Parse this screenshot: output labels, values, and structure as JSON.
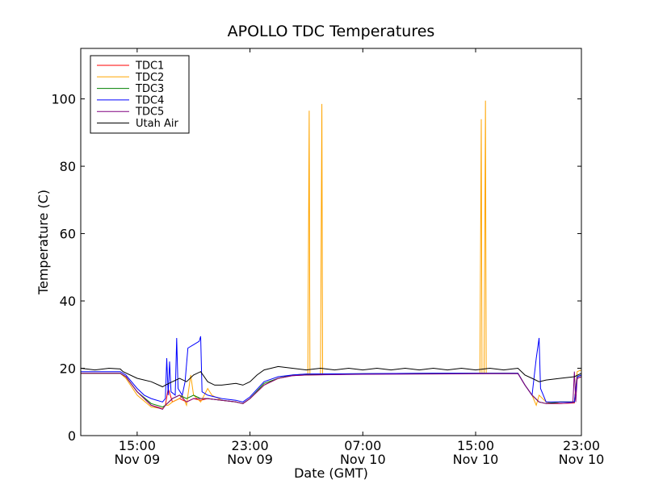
{
  "chart_data": {
    "type": "line",
    "title": "APOLLO TDC Temperatures",
    "xlabel": "Date (GMT)",
    "ylabel": "Temperature (C)",
    "ylim": [
      0,
      115
    ],
    "xlim": [
      0,
      35.5
    ],
    "x_unit": "hours since Nov 09 11:00 GMT",
    "grid": false,
    "legend_position": "top-left",
    "yticks": [
      0,
      20,
      40,
      60,
      80,
      100
    ],
    "xticks": [
      {
        "x": 4,
        "line1": "15:00",
        "line2": "Nov 09"
      },
      {
        "x": 12,
        "line1": "23:00",
        "line2": "Nov 09"
      },
      {
        "x": 20,
        "line1": "07:00",
        "line2": "Nov 10"
      },
      {
        "x": 28,
        "line1": "15:00",
        "line2": "Nov 10"
      },
      {
        "x": 36,
        "line1": "23:00",
        "line2": "Nov 10"
      }
    ],
    "series": [
      {
        "name": "TDC1",
        "color": "#ff0000",
        "points": [
          [
            0,
            18.5
          ],
          [
            2.8,
            18.5
          ],
          [
            3.2,
            17.5
          ],
          [
            4,
            13
          ],
          [
            5,
            9
          ],
          [
            5.8,
            8
          ],
          [
            6,
            9
          ],
          [
            6.2,
            14
          ],
          [
            6.5,
            10
          ],
          [
            7,
            11
          ],
          [
            7.5,
            10
          ],
          [
            8,
            11
          ],
          [
            8.5,
            10.5
          ],
          [
            9,
            11
          ],
          [
            10,
            10.5
          ],
          [
            11,
            10
          ],
          [
            11.5,
            9.5
          ],
          [
            12,
            11
          ],
          [
            13,
            15
          ],
          [
            14,
            17
          ],
          [
            15,
            17.8
          ],
          [
            16,
            18
          ],
          [
            20,
            18.3
          ],
          [
            25,
            18.4
          ],
          [
            29,
            18.5
          ],
          [
            31,
            18.5
          ],
          [
            31.5,
            15
          ],
          [
            32,
            12
          ],
          [
            32.5,
            10
          ],
          [
            33,
            9.5
          ],
          [
            34,
            9.5
          ],
          [
            35,
            9.7
          ],
          [
            35.2,
            17
          ],
          [
            35.5,
            17.5
          ]
        ]
      },
      {
        "name": "TDC2",
        "color": "#ffa500",
        "points": [
          [
            0,
            18.5
          ],
          [
            2.8,
            18.5
          ],
          [
            3.2,
            17
          ],
          [
            4,
            12
          ],
          [
            5,
            8.5
          ],
          [
            5.8,
            8
          ],
          [
            6,
            9
          ],
          [
            6.2,
            9
          ],
          [
            6.5,
            10
          ],
          [
            7,
            11
          ],
          [
            7.2,
            12
          ],
          [
            7.5,
            9
          ],
          [
            7.8,
            18
          ],
          [
            8,
            12
          ],
          [
            8.5,
            10
          ],
          [
            9,
            14
          ],
          [
            9.3,
            12
          ],
          [
            10,
            10.5
          ],
          [
            11,
            10
          ],
          [
            11.5,
            9.5
          ],
          [
            12,
            11
          ],
          [
            13,
            15
          ],
          [
            14,
            17
          ],
          [
            15,
            18
          ],
          [
            16.1,
            18.3
          ],
          [
            16.2,
            96.5
          ],
          [
            16.25,
            18.3
          ],
          [
            17,
            18.3
          ],
          [
            17.1,
            98.5
          ],
          [
            17.15,
            18.3
          ],
          [
            20,
            18.3
          ],
          [
            25,
            18.4
          ],
          [
            28.3,
            18.5
          ],
          [
            28.4,
            94
          ],
          [
            28.45,
            18.5
          ],
          [
            28.6,
            18.5
          ],
          [
            28.7,
            99.5
          ],
          [
            28.75,
            18.5
          ],
          [
            31,
            18.5
          ],
          [
            31.5,
            15
          ],
          [
            32,
            12
          ],
          [
            32.3,
            9
          ],
          [
            32.5,
            12
          ],
          [
            33,
            10
          ],
          [
            33.5,
            9.5
          ],
          [
            34,
            10
          ],
          [
            35,
            10
          ],
          [
            35.2,
            19
          ],
          [
            35.5,
            19.5
          ]
        ]
      },
      {
        "name": "TDC3",
        "color": "#008000",
        "points": [
          [
            0,
            18.5
          ],
          [
            2.8,
            18.5
          ],
          [
            3.2,
            17.5
          ],
          [
            4,
            13
          ],
          [
            5,
            9.5
          ],
          [
            5.8,
            8.5
          ],
          [
            6,
            9
          ],
          [
            6.5,
            11
          ],
          [
            7,
            12
          ],
          [
            7.5,
            11
          ],
          [
            8,
            12
          ],
          [
            8.5,
            11
          ],
          [
            9,
            11
          ],
          [
            10,
            10.5
          ],
          [
            11,
            10
          ],
          [
            11.5,
            9.5
          ],
          [
            12,
            11
          ],
          [
            13,
            15.5
          ],
          [
            14,
            17
          ],
          [
            15,
            18
          ],
          [
            16,
            18.2
          ],
          [
            20,
            18.4
          ],
          [
            25,
            18.5
          ],
          [
            29,
            18.5
          ],
          [
            31,
            18.5
          ],
          [
            31.5,
            15
          ],
          [
            32,
            12
          ],
          [
            32.5,
            10
          ],
          [
            33,
            9.5
          ],
          [
            34,
            10
          ],
          [
            35,
            10
          ],
          [
            35.2,
            17.5
          ],
          [
            35.5,
            18
          ]
        ]
      },
      {
        "name": "TDC4",
        "color": "#0000ff",
        "points": [
          [
            0,
            19
          ],
          [
            2.8,
            19
          ],
          [
            3.2,
            18
          ],
          [
            4,
            14
          ],
          [
            4.5,
            12
          ],
          [
            5,
            11
          ],
          [
            5.8,
            10
          ],
          [
            6,
            11
          ],
          [
            6.1,
            23
          ],
          [
            6.2,
            12
          ],
          [
            6.3,
            22
          ],
          [
            6.4,
            13
          ],
          [
            6.7,
            12
          ],
          [
            6.8,
            29
          ],
          [
            6.9,
            14
          ],
          [
            7.2,
            12
          ],
          [
            7.4,
            16
          ],
          [
            7.6,
            26
          ],
          [
            8,
            27
          ],
          [
            8.4,
            28
          ],
          [
            8.5,
            29.5
          ],
          [
            8.6,
            13
          ],
          [
            9,
            12
          ],
          [
            10,
            11
          ],
          [
            11,
            10.5
          ],
          [
            11.5,
            10
          ],
          [
            12,
            11.5
          ],
          [
            13,
            16
          ],
          [
            14,
            17.5
          ],
          [
            15,
            18
          ],
          [
            16,
            18.3
          ],
          [
            20,
            18.4
          ],
          [
            25,
            18.5
          ],
          [
            29,
            18.5
          ],
          [
            31,
            18.5
          ],
          [
            31.5,
            15
          ],
          [
            32,
            12
          ],
          [
            32.3,
            23
          ],
          [
            32.5,
            29
          ],
          [
            32.6,
            14
          ],
          [
            33,
            10
          ],
          [
            33.5,
            10
          ],
          [
            34,
            10
          ],
          [
            35,
            10
          ],
          [
            35.2,
            17.5
          ],
          [
            35.5,
            18
          ]
        ]
      },
      {
        "name": "TDC5",
        "color": "#800080",
        "points": [
          [
            0,
            18.5
          ],
          [
            2.8,
            18.5
          ],
          [
            3.2,
            17.5
          ],
          [
            4,
            13
          ],
          [
            5,
            9
          ],
          [
            5.8,
            7.8
          ],
          [
            6,
            9
          ],
          [
            6.5,
            11
          ],
          [
            7,
            12
          ],
          [
            7.5,
            10
          ],
          [
            8,
            11
          ],
          [
            8.5,
            11
          ],
          [
            9,
            11
          ],
          [
            10,
            10.5
          ],
          [
            11,
            10
          ],
          [
            11.5,
            9.5
          ],
          [
            12,
            11
          ],
          [
            13,
            15
          ],
          [
            14,
            17
          ],
          [
            15,
            17.8
          ],
          [
            16,
            18
          ],
          [
            20,
            18.2
          ],
          [
            25,
            18.3
          ],
          [
            29,
            18.4
          ],
          [
            31,
            18.4
          ],
          [
            31.5,
            15
          ],
          [
            32,
            12
          ],
          [
            32.5,
            10
          ],
          [
            33,
            9.5
          ],
          [
            34,
            9.5
          ],
          [
            34.9,
            9.8
          ],
          [
            35,
            19
          ],
          [
            35.1,
            10
          ],
          [
            35.2,
            17
          ],
          [
            35.5,
            17.5
          ]
        ]
      },
      {
        "name": "Utah Air",
        "color": "#000000",
        "points": [
          [
            0,
            20
          ],
          [
            1,
            19.5
          ],
          [
            2,
            20
          ],
          [
            2.8,
            19.8
          ],
          [
            3,
            19
          ],
          [
            4,
            17
          ],
          [
            5,
            16
          ],
          [
            5.8,
            14.5
          ],
          [
            6,
            15
          ],
          [
            6.5,
            16
          ],
          [
            7,
            17
          ],
          [
            7.5,
            16
          ],
          [
            8,
            18
          ],
          [
            8.5,
            19
          ],
          [
            9,
            16
          ],
          [
            9.5,
            15
          ],
          [
            10,
            15
          ],
          [
            11,
            15.5
          ],
          [
            11.5,
            15
          ],
          [
            12,
            16
          ],
          [
            12.5,
            18
          ],
          [
            13,
            19.5
          ],
          [
            14,
            20.5
          ],
          [
            15,
            20
          ],
          [
            16,
            19.5
          ],
          [
            17,
            20
          ],
          [
            18,
            19.5
          ],
          [
            19,
            20
          ],
          [
            20,
            19.5
          ],
          [
            21,
            20
          ],
          [
            22,
            19.5
          ],
          [
            23,
            20
          ],
          [
            24,
            19.5
          ],
          [
            25,
            20
          ],
          [
            26,
            19.5
          ],
          [
            27,
            20
          ],
          [
            28,
            19.5
          ],
          [
            29,
            20
          ],
          [
            30,
            19.5
          ],
          [
            31,
            20
          ],
          [
            31.5,
            18
          ],
          [
            32,
            17
          ],
          [
            32.5,
            16
          ],
          [
            33,
            16.5
          ],
          [
            34,
            17
          ],
          [
            35,
            17.5
          ],
          [
            35.5,
            18.5
          ]
        ]
      }
    ]
  }
}
